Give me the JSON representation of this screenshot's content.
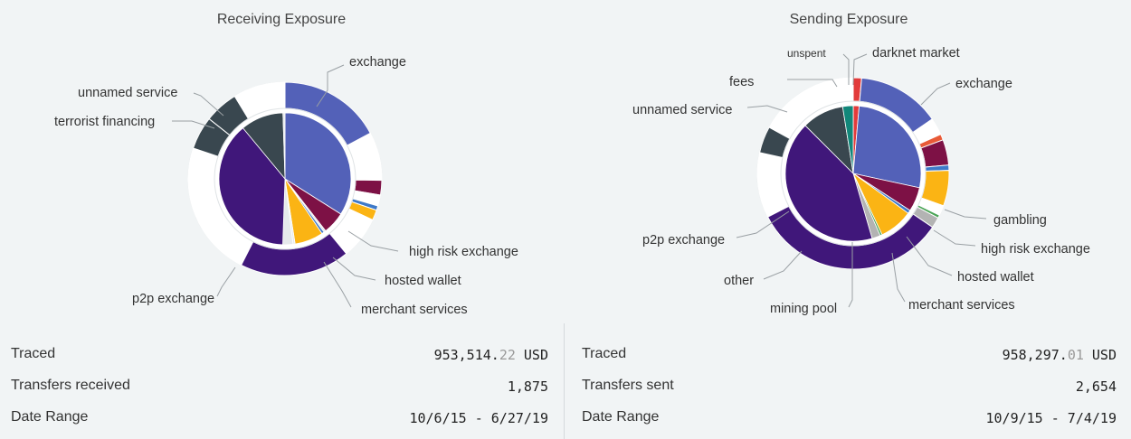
{
  "chart_data": [
    {
      "type": "pie",
      "title": "Receiving Exposure",
      "inner_ring_values": {
        "exchange": 34.0,
        "high risk exchange": 5.5,
        "unlabeled_1": 0.5,
        "hosted wallet": 0.6,
        "merchant services": 7.0,
        "unlabeled_2": 0.5,
        "unlabeled_3": 2.5,
        "p2p exchange": 38.5,
        "unnamed service": 10.5,
        "unlabeled_4": 0.5
      },
      "outer_ring_values": {
        "exchange": 14.0,
        "unlabeled_5": 6.6,
        "high risk exchange": 2.0,
        "unlabeled_6": 1.5,
        "hosted wallet": 0.6,
        "merchant services": 1.4,
        "unlabeled_7": 2.6,
        "unlabeled_8": 3.2,
        "p2p exchange": 15.0,
        "unlabeled_9": 18.5,
        "terrorist financing": 4.5,
        "unnamed service": 4.6,
        "unlabeled_10": 7.1
      },
      "labels": [
        "exchange",
        "unnamed service",
        "terrorist financing",
        "high risk exchange",
        "hosted wallet",
        "merchant services",
        "p2p exchange"
      ]
    },
    {
      "type": "pie",
      "title": "Sending Exposure",
      "inner_ring_values": {
        "darknet market": 1.4,
        "exchange": 27.0,
        "high risk exchange": 5.8,
        "hosted wallet": 0.8,
        "merchant services": 8.0,
        "mining pool": 0.5,
        "other": 2.0,
        "p2p exchange": 42.0,
        "unnamed service": 10.0,
        "fees": 2.5
      },
      "outer_ring_values": {
        "darknet market": 1.4,
        "exchange": 14.0,
        "unlabeled_1": 2.9,
        "gambling": 1.0,
        "high risk exchange": 4.3,
        "hosted wallet": 0.9,
        "merchant services": 6.0,
        "unlabeled_2": 1.7,
        "mining pool": 0.5,
        "other": 1.8,
        "p2p exchange": 33.0,
        "unlabeled_3": 11.0,
        "unnamed service": 4.5,
        "unlabeled_4": 17.0
      },
      "labels": [
        "unspent",
        "darknet market",
        "fees",
        "exchange",
        "unnamed service",
        "gambling",
        "high risk exchange",
        "p2p exchange",
        "hosted wallet",
        "other",
        "merchant services",
        "mining pool"
      ]
    }
  ],
  "colors": {
    "exchange": "#5361b8",
    "p2p exchange": "#40177a",
    "unnamed service": "#39474f",
    "terrorist financing": "#39474f",
    "high risk exchange": "#7d1145",
    "hosted wallet": "#3e79c8",
    "merchant services": "#fbb414",
    "darknet market": "#e23b3b",
    "gambling": "#e85a37",
    "fees": "#12877a",
    "mining pool": "#4aa356",
    "other": "#b3b3b3",
    "unspent": "#b3b3b3",
    "outer_bg": "#ffffff"
  },
  "left": {
    "title": "Receiving Exposure",
    "stats": [
      {
        "label": "Traced",
        "value_main": "953,514.",
        "value_cents": "22",
        "value_unit": " USD"
      },
      {
        "label": "Transfers received",
        "value_main": "1,875",
        "value_cents": "",
        "value_unit": ""
      },
      {
        "label": "Date Range",
        "value_main": "10/6/15 - 6/27/19",
        "value_cents": "",
        "value_unit": ""
      }
    ]
  },
  "right": {
    "title": "Sending Exposure",
    "stats": [
      {
        "label": "Traced",
        "value_main": "958,297.",
        "value_cents": "01",
        "value_unit": " USD"
      },
      {
        "label": "Transfers sent",
        "value_main": "2,654",
        "value_cents": "",
        "value_unit": ""
      },
      {
        "label": "Date Range",
        "value_main": "10/9/15 - 7/4/19",
        "value_cents": "",
        "value_unit": ""
      }
    ]
  }
}
